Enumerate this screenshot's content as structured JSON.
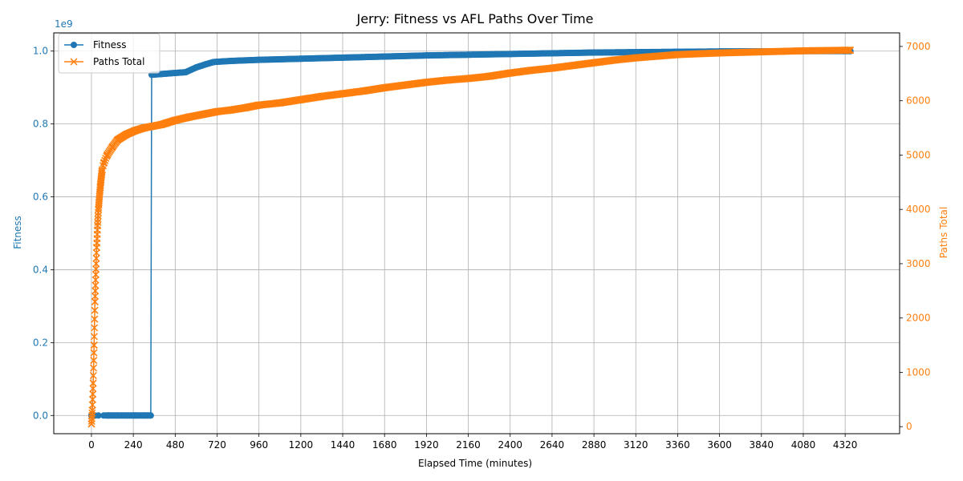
{
  "chart_data": {
    "type": "line",
    "title": "Jerry: Fitness vs AFL Paths Over Time",
    "xlabel": "Elapsed Time (minutes)",
    "ylabel_left": "Fitness",
    "ylabel_right": "Paths Total",
    "left_axis_offset_text": "1e9",
    "xlim": [
      -216,
      4632
    ],
    "ylim_left": [
      -0.05,
      1.05
    ],
    "ylim_right": [
      -130,
      7250
    ],
    "x_ticks": [
      0,
      240,
      480,
      720,
      960,
      1200,
      1440,
      1680,
      1920,
      2160,
      2400,
      2640,
      2880,
      3120,
      3360,
      3600,
      3840,
      4080,
      4320
    ],
    "y_ticks_left": [
      0.0,
      0.2,
      0.4,
      0.6,
      0.8,
      1.0
    ],
    "y_ticks_right": [
      0,
      1000,
      2000,
      3000,
      4000,
      5000,
      6000,
      7000
    ],
    "grid": true,
    "legend_position": "top-left",
    "series": [
      {
        "name": "Fitness",
        "axis": "left",
        "marker": "circle",
        "color": "#1f77b4",
        "x": [
          0,
          5,
          20,
          40,
          70,
          100,
          150,
          200,
          250,
          300,
          340,
          345,
          400,
          480,
          540,
          600,
          650,
          700,
          800,
          960,
          1200,
          1440,
          1680,
          1920,
          2160,
          2400,
          2640,
          2880,
          3120,
          3360,
          3600,
          3840,
          4080,
          4320,
          4350
        ],
        "values": [
          0.0,
          0.0,
          0.0,
          0.0,
          0.0,
          0.0,
          0.0,
          0.0,
          0.0,
          0.0,
          0.0,
          0.935,
          0.937,
          0.94,
          0.942,
          0.955,
          0.963,
          0.97,
          0.973,
          0.976,
          0.979,
          0.982,
          0.985,
          0.988,
          0.99,
          0.992,
          0.994,
          0.996,
          0.997,
          0.998,
          0.999,
          0.999,
          1.0,
          1.0,
          1.0
        ]
      },
      {
        "name": "Paths Total",
        "axis": "right",
        "marker": "x",
        "color": "#ff7f0e",
        "x": [
          0,
          5,
          10,
          15,
          20,
          25,
          30,
          35,
          40,
          50,
          60,
          70,
          90,
          120,
          150,
          200,
          250,
          300,
          350,
          400,
          480,
          560,
          640,
          720,
          800,
          880,
          960,
          1080,
          1200,
          1320,
          1440,
          1560,
          1680,
          1800,
          1920,
          2040,
          2160,
          2280,
          2400,
          2520,
          2640,
          2760,
          2880,
          3000,
          3120,
          3240,
          3360,
          3600,
          3840,
          4080,
          4320,
          4350
        ],
        "values": [
          50,
          300,
          800,
          1500,
          2300,
          2800,
          3300,
          3700,
          4000,
          4400,
          4700,
          4850,
          5000,
          5150,
          5280,
          5380,
          5450,
          5500,
          5530,
          5560,
          5640,
          5700,
          5750,
          5800,
          5830,
          5870,
          5920,
          5960,
          6020,
          6080,
          6130,
          6180,
          6240,
          6290,
          6340,
          6380,
          6410,
          6450,
          6510,
          6560,
          6600,
          6650,
          6700,
          6750,
          6790,
          6820,
          6850,
          6880,
          6900,
          6920,
          6930,
          6930
        ]
      }
    ]
  }
}
